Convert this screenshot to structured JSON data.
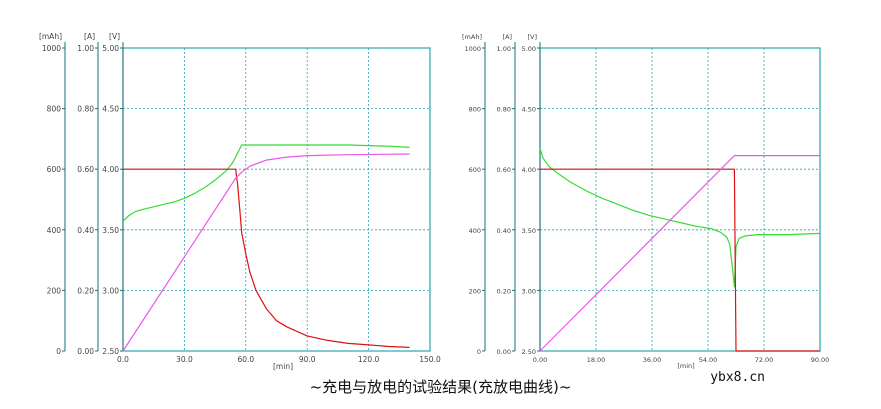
{
  "caption": "~充电与放电的试验结果(充放电曲线)~",
  "watermark": "ybx8.cn",
  "colors": {
    "grid": "#2aa6b0",
    "frame": "#2aa6b0",
    "axis_line": "#1a6f7a",
    "tick_text": "#444444",
    "voltage": "#33dd33",
    "current": "#dd1111",
    "capacity": "#ee55ee"
  },
  "chart_data": [
    {
      "type": "line",
      "units": {
        "capacity": "[mAh]",
        "current": "[A]",
        "voltage": "[V]",
        "x": "[min]"
      },
      "x_ticks": [
        "0.0",
        "30.0",
        "60.0",
        "90.0",
        "120.0",
        "150.0"
      ],
      "xlim": [
        0,
        150
      ],
      "capacity_ticks": [
        "0",
        "200",
        "400",
        "600",
        "800",
        "1000"
      ],
      "capacity_lim": [
        0,
        1000
      ],
      "current_ticks": [
        "0.00",
        "0.20",
        "0.40",
        "0.60",
        "0.80",
        "1.00"
      ],
      "current_lim": [
        0,
        1.0
      ],
      "voltage_ticks": [
        "2.50",
        "3.00",
        "3.50",
        "4.00",
        "4.50",
        "5.00"
      ],
      "voltage_lim": [
        2.5,
        5.0
      ],
      "grid": true,
      "series": [
        {
          "key": "voltage",
          "axis": "voltage",
          "points": [
            [
              0,
              3.57
            ],
            [
              3,
              3.62
            ],
            [
              6,
              3.65
            ],
            [
              10,
              3.67
            ],
            [
              15,
              3.69
            ],
            [
              20,
              3.71
            ],
            [
              25,
              3.73
            ],
            [
              30,
              3.76
            ],
            [
              35,
              3.8
            ],
            [
              40,
              3.85
            ],
            [
              45,
              3.91
            ],
            [
              50,
              3.98
            ],
            [
              53,
              4.04
            ],
            [
              55,
              4.1
            ],
            [
              58,
              4.2
            ],
            [
              70,
              4.2
            ],
            [
              90,
              4.2
            ],
            [
              110,
              4.2
            ],
            [
              130,
              4.19
            ],
            [
              140,
              4.18
            ]
          ]
        },
        {
          "key": "current",
          "axis": "current",
          "points": [
            [
              0,
              0.6
            ],
            [
              55,
              0.6
            ],
            [
              56,
              0.55
            ],
            [
              57,
              0.47
            ],
            [
              58,
              0.39
            ],
            [
              60,
              0.32
            ],
            [
              62,
              0.26
            ],
            [
              65,
              0.2
            ],
            [
              70,
              0.14
            ],
            [
              75,
              0.1
            ],
            [
              80,
              0.08
            ],
            [
              90,
              0.05
            ],
            [
              100,
              0.035
            ],
            [
              110,
              0.025
            ],
            [
              120,
              0.02
            ],
            [
              130,
              0.015
            ],
            [
              140,
              0.012
            ]
          ]
        },
        {
          "key": "capacity",
          "axis": "capacity",
          "points": [
            [
              0,
              0
            ],
            [
              55,
              570
            ],
            [
              58,
              590
            ],
            [
              62,
              610
            ],
            [
              70,
              630
            ],
            [
              80,
              640
            ],
            [
              90,
              645
            ],
            [
              110,
              648
            ],
            [
              140,
              650
            ]
          ]
        }
      ]
    },
    {
      "type": "line",
      "units": {
        "capacity": "[mAh]",
        "current": "[A]",
        "voltage": "[V]",
        "x": "[min]"
      },
      "x_ticks": [
        "0.00",
        "18.00",
        "36.00",
        "54.00",
        "72.00",
        "90.00"
      ],
      "xlim": [
        0,
        90
      ],
      "capacity_ticks": [
        "0",
        "200",
        "400",
        "600",
        "800",
        "1000"
      ],
      "capacity_lim": [
        0,
        1000
      ],
      "current_ticks": [
        "0.00",
        "0.20",
        "0.40",
        "0.60",
        "0.80",
        "1.00"
      ],
      "current_lim": [
        0,
        1.0
      ],
      "voltage_ticks": [
        "2.50",
        "3.00",
        "3.50",
        "4.00",
        "4.50",
        "5.00"
      ],
      "voltage_lim": [
        2.5,
        5.0
      ],
      "grid": true,
      "series": [
        {
          "key": "voltage",
          "axis": "voltage",
          "points": [
            [
              0,
              4.17
            ],
            [
              1,
              4.09
            ],
            [
              3,
              4.02
            ],
            [
              6,
              3.96
            ],
            [
              10,
              3.89
            ],
            [
              15,
              3.82
            ],
            [
              20,
              3.76
            ],
            [
              25,
              3.71
            ],
            [
              30,
              3.66
            ],
            [
              35,
              3.62
            ],
            [
              40,
              3.59
            ],
            [
              45,
              3.56
            ],
            [
              50,
              3.53
            ],
            [
              55,
              3.51
            ],
            [
              58,
              3.48
            ],
            [
              60,
              3.44
            ],
            [
              61,
              3.38
            ],
            [
              62,
              3.15
            ],
            [
              62.5,
              3.03
            ],
            [
              63,
              3.36
            ],
            [
              64,
              3.43
            ],
            [
              66,
              3.45
            ],
            [
              70,
              3.46
            ],
            [
              80,
              3.46
            ],
            [
              90,
              3.47
            ]
          ]
        },
        {
          "key": "current",
          "axis": "current",
          "points": [
            [
              0,
              0.6
            ],
            [
              62.5,
              0.6
            ],
            [
              63,
              0.0
            ],
            [
              90,
              0.0
            ]
          ]
        },
        {
          "key": "capacity",
          "axis": "capacity",
          "points": [
            [
              0,
              0
            ],
            [
              62.5,
              645
            ],
            [
              90,
              645
            ]
          ]
        }
      ]
    }
  ]
}
